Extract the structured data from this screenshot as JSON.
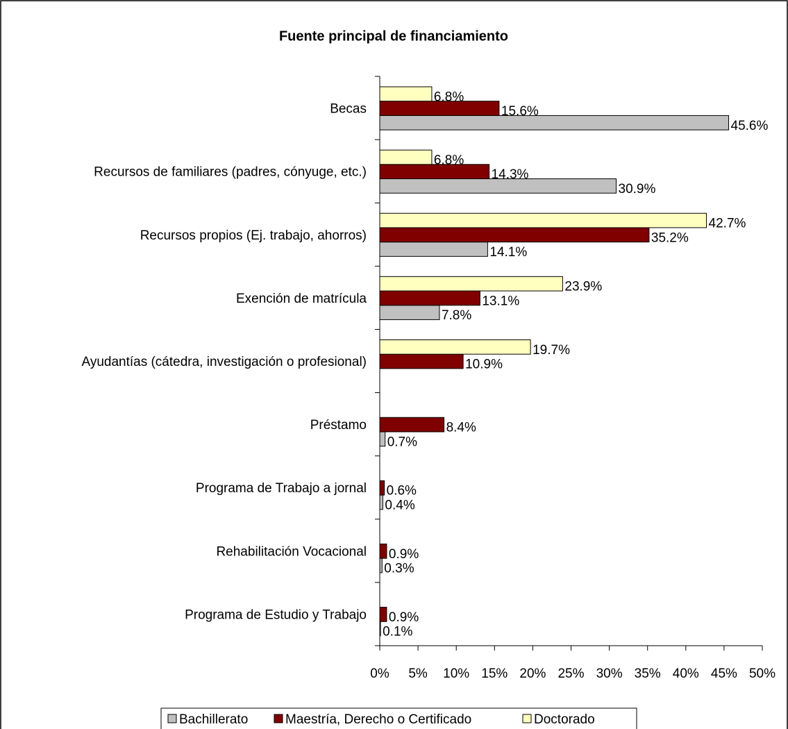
{
  "chart_data": {
    "type": "hbar",
    "title": "Fuente principal de financiamiento",
    "categories": [
      "Becas",
      "Recursos de familiares (padres, cónyuge, etc.)",
      "Recursos propios (Ej. trabajo, ahorros)",
      "Exención de matrícula",
      "Ayudantías (cátedra, investigación o profesional)",
      "Préstamo",
      "Programa de Trabajo a jornal",
      "Rehabilitación Vocacional",
      "Programa de Estudio y Trabajo"
    ],
    "series": [
      {
        "name": "Bachillerato",
        "color": "#c0c0c0",
        "values": [
          45.6,
          30.9,
          14.1,
          7.8,
          null,
          0.7,
          0.4,
          0.3,
          0.1
        ],
        "value_labels": [
          "45.6%",
          "30.9%",
          "14.1%",
          "7.8%",
          null,
          "0.7%",
          "0.4%",
          "0.3%",
          "0.1%"
        ]
      },
      {
        "name": "Maestría, Derecho o Certificado",
        "color": "#800000",
        "values": [
          15.6,
          14.3,
          35.2,
          13.1,
          10.9,
          8.4,
          0.6,
          0.9,
          0.9
        ],
        "value_labels": [
          "15.6%",
          "14.3%",
          "35.2%",
          "13.1%",
          "10.9%",
          "8.4%",
          "0.6%",
          "0.9%",
          "0.9%"
        ]
      },
      {
        "name": "Doctorado",
        "color": "#ffffc0",
        "values": [
          6.8,
          6.8,
          42.7,
          23.9,
          19.7,
          null,
          null,
          null,
          null
        ],
        "value_labels": [
          "6.8%",
          "6.8%",
          "42.7%",
          "23.9%",
          "19.7%",
          null,
          null,
          null,
          null
        ]
      }
    ],
    "xlim": [
      0,
      50
    ],
    "xticks": [
      {
        "value": 0,
        "label": "0%"
      },
      {
        "value": 5,
        "label": "5%"
      },
      {
        "value": 10,
        "label": "10%"
      },
      {
        "value": 15,
        "label": "15%"
      },
      {
        "value": 20,
        "label": "20%"
      },
      {
        "value": 25,
        "label": "25%"
      },
      {
        "value": 30,
        "label": "30%"
      },
      {
        "value": 35,
        "label": "35%"
      },
      {
        "value": 40,
        "label": "40%"
      },
      {
        "value": 45,
        "label": "45%"
      },
      {
        "value": 50,
        "label": "50%"
      }
    ],
    "grid": false,
    "legend": "bottom"
  }
}
